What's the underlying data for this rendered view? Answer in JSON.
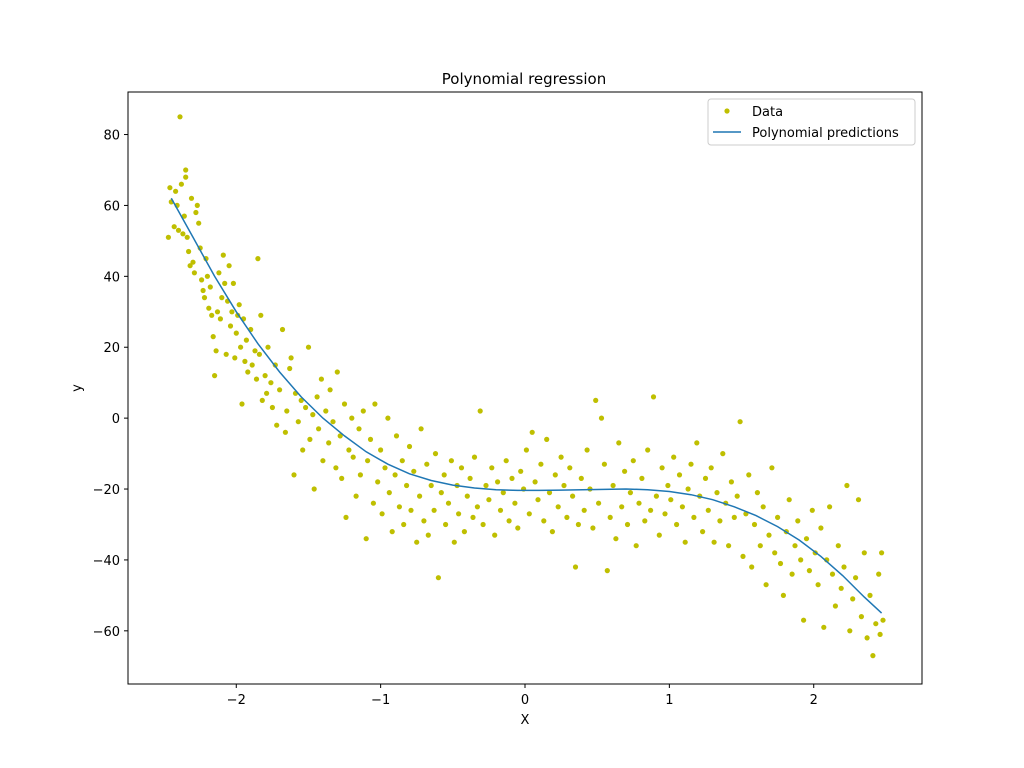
{
  "chart_data": {
    "type": "scatter",
    "title": "Polynomial regression",
    "xlabel": "X",
    "ylabel": "y",
    "xlim": [
      -2.75,
      2.75
    ],
    "ylim": [
      -75,
      92
    ],
    "x_ticks": [
      -2,
      -1,
      0,
      1,
      2
    ],
    "x_tick_labels": [
      "−2",
      "−1",
      "0",
      "1",
      "2"
    ],
    "y_ticks": [
      -60,
      -40,
      -20,
      0,
      20,
      40,
      60,
      80
    ],
    "y_tick_labels": [
      "−60",
      "−40",
      "−20",
      "0",
      "20",
      "40",
      "60",
      "80"
    ],
    "grid": false,
    "legend": {
      "placement": "top-right",
      "entries": [
        "Data",
        "Polynomial predictions"
      ]
    },
    "colors": {
      "data": "#bfbf00",
      "prediction": "#1f77b4"
    },
    "series": [
      {
        "name": "Data",
        "kind": "scatter",
        "points": [
          [
            -2.47,
            51
          ],
          [
            -2.46,
            65
          ],
          [
            -2.45,
            61
          ],
          [
            -2.43,
            54
          ],
          [
            -2.42,
            64
          ],
          [
            -2.41,
            60
          ],
          [
            -2.4,
            53
          ],
          [
            -2.39,
            85
          ],
          [
            -2.38,
            66
          ],
          [
            -2.37,
            52
          ],
          [
            -2.36,
            57
          ],
          [
            -2.35,
            68
          ],
          [
            -2.35,
            70
          ],
          [
            -2.34,
            51
          ],
          [
            -2.33,
            47
          ],
          [
            -2.32,
            43
          ],
          [
            -2.31,
            62
          ],
          [
            -2.3,
            44
          ],
          [
            -2.29,
            41
          ],
          [
            -2.28,
            58
          ],
          [
            -2.27,
            60
          ],
          [
            -2.26,
            55
          ],
          [
            -2.25,
            48
          ],
          [
            -2.24,
            39
          ],
          [
            -2.23,
            36
          ],
          [
            -2.22,
            34
          ],
          [
            -2.21,
            45
          ],
          [
            -2.2,
            40
          ],
          [
            -2.19,
            31
          ],
          [
            -2.18,
            37
          ],
          [
            -2.17,
            29
          ],
          [
            -2.16,
            23
          ],
          [
            -2.15,
            12
          ],
          [
            -2.14,
            19
          ],
          [
            -2.13,
            30
          ],
          [
            -2.12,
            41
          ],
          [
            -2.11,
            28
          ],
          [
            -2.1,
            34
          ],
          [
            -2.09,
            46
          ],
          [
            -2.08,
            38
          ],
          [
            -2.07,
            18
          ],
          [
            -2.06,
            33
          ],
          [
            -2.05,
            43
          ],
          [
            -2.04,
            26
          ],
          [
            -2.03,
            30
          ],
          [
            -2.02,
            38
          ],
          [
            -2.01,
            17
          ],
          [
            -2.0,
            24
          ],
          [
            -1.99,
            29
          ],
          [
            -1.98,
            32
          ],
          [
            -1.97,
            20
          ],
          [
            -1.96,
            4
          ],
          [
            -1.95,
            28
          ],
          [
            -1.94,
            16
          ],
          [
            -1.93,
            22
          ],
          [
            -1.92,
            13
          ],
          [
            -1.9,
            25
          ],
          [
            -1.89,
            15
          ],
          [
            -1.87,
            19
          ],
          [
            -1.86,
            11
          ],
          [
            -1.85,
            45
          ],
          [
            -1.84,
            18
          ],
          [
            -1.83,
            29
          ],
          [
            -1.82,
            5
          ],
          [
            -1.8,
            12
          ],
          [
            -1.79,
            7
          ],
          [
            -1.78,
            20
          ],
          [
            -1.76,
            10
          ],
          [
            -1.75,
            3
          ],
          [
            -1.73,
            15
          ],
          [
            -1.72,
            -2
          ],
          [
            -1.7,
            8
          ],
          [
            -1.68,
            25
          ],
          [
            -1.66,
            -4
          ],
          [
            -1.65,
            2
          ],
          [
            -1.63,
            14
          ],
          [
            -1.62,
            17
          ],
          [
            -1.6,
            -16
          ],
          [
            -1.59,
            7
          ],
          [
            -1.57,
            -1
          ],
          [
            -1.55,
            5
          ],
          [
            -1.54,
            -9
          ],
          [
            -1.52,
            3
          ],
          [
            -1.5,
            20
          ],
          [
            -1.49,
            -6
          ],
          [
            -1.47,
            1
          ],
          [
            -1.46,
            -20
          ],
          [
            -1.44,
            6
          ],
          [
            -1.43,
            -3
          ],
          [
            -1.41,
            11
          ],
          [
            -1.4,
            -12
          ],
          [
            -1.38,
            2
          ],
          [
            -1.36,
            -7
          ],
          [
            -1.35,
            8
          ],
          [
            -1.33,
            -1
          ],
          [
            -1.31,
            -14
          ],
          [
            -1.3,
            13
          ],
          [
            -1.28,
            -5
          ],
          [
            -1.27,
            -17
          ],
          [
            -1.25,
            4
          ],
          [
            -1.24,
            -28
          ],
          [
            -1.22,
            -9
          ],
          [
            -1.2,
            0
          ],
          [
            -1.19,
            -11
          ],
          [
            -1.17,
            -22
          ],
          [
            -1.15,
            -3
          ],
          [
            -1.14,
            -16
          ],
          [
            -1.12,
            2
          ],
          [
            -1.1,
            -34
          ],
          [
            -1.09,
            -12
          ],
          [
            -1.07,
            -6
          ],
          [
            -1.05,
            -24
          ],
          [
            -1.04,
            4
          ],
          [
            -1.02,
            -18
          ],
          [
            -1.0,
            -9
          ],
          [
            -0.99,
            -27
          ],
          [
            -0.97,
            -14
          ],
          [
            -0.95,
            0
          ],
          [
            -0.94,
            -21
          ],
          [
            -0.92,
            -32
          ],
          [
            -0.9,
            -16
          ],
          [
            -0.89,
            -5
          ],
          [
            -0.87,
            -25
          ],
          [
            -0.85,
            -12
          ],
          [
            -0.84,
            -30
          ],
          [
            -0.82,
            -19
          ],
          [
            -0.8,
            -8
          ],
          [
            -0.79,
            -26
          ],
          [
            -0.77,
            -15
          ],
          [
            -0.75,
            -35
          ],
          [
            -0.73,
            -22
          ],
          [
            -0.72,
            -3
          ],
          [
            -0.7,
            -29
          ],
          [
            -0.68,
            -13
          ],
          [
            -0.67,
            -33
          ],
          [
            -0.65,
            -19
          ],
          [
            -0.63,
            -26
          ],
          [
            -0.62,
            -10
          ],
          [
            -0.6,
            -45
          ],
          [
            -0.58,
            -21
          ],
          [
            -0.56,
            -16
          ],
          [
            -0.55,
            -30
          ],
          [
            -0.53,
            -24
          ],
          [
            -0.51,
            -12
          ],
          [
            -0.49,
            -35
          ],
          [
            -0.47,
            -19
          ],
          [
            -0.46,
            -27
          ],
          [
            -0.44,
            -14
          ],
          [
            -0.42,
            -32
          ],
          [
            -0.4,
            -22
          ],
          [
            -0.38,
            -17
          ],
          [
            -0.36,
            -28
          ],
          [
            -0.35,
            -11
          ],
          [
            -0.33,
            -25
          ],
          [
            -0.31,
            2
          ],
          [
            -0.29,
            -30
          ],
          [
            -0.27,
            -19
          ],
          [
            -0.25,
            -23
          ],
          [
            -0.23,
            -14
          ],
          [
            -0.21,
            -33
          ],
          [
            -0.19,
            -18
          ],
          [
            -0.17,
            -26
          ],
          [
            -0.15,
            -21
          ],
          [
            -0.13,
            -12
          ],
          [
            -0.11,
            -29
          ],
          [
            -0.09,
            -17
          ],
          [
            -0.07,
            -24
          ],
          [
            -0.05,
            -31
          ],
          [
            -0.03,
            -15
          ],
          [
            -0.01,
            -20
          ],
          [
            0.01,
            -9
          ],
          [
            0.03,
            -27
          ],
          [
            0.05,
            -4
          ],
          [
            0.07,
            -18
          ],
          [
            0.09,
            -23
          ],
          [
            0.11,
            -13
          ],
          [
            0.13,
            -29
          ],
          [
            0.15,
            -6
          ],
          [
            0.17,
            -21
          ],
          [
            0.19,
            -32
          ],
          [
            0.21,
            -16
          ],
          [
            0.23,
            -25
          ],
          [
            0.25,
            -11
          ],
          [
            0.27,
            -19
          ],
          [
            0.29,
            -28
          ],
          [
            0.31,
            -14
          ],
          [
            0.33,
            -22
          ],
          [
            0.35,
            -42
          ],
          [
            0.37,
            -30
          ],
          [
            0.39,
            -17
          ],
          [
            0.41,
            -26
          ],
          [
            0.43,
            -9
          ],
          [
            0.45,
            -20
          ],
          [
            0.47,
            -31
          ],
          [
            0.49,
            5
          ],
          [
            0.51,
            -24
          ],
          [
            0.53,
            0
          ],
          [
            0.55,
            -13
          ],
          [
            0.57,
            -43
          ],
          [
            0.59,
            -28
          ],
          [
            0.61,
            -19
          ],
          [
            0.63,
            -34
          ],
          [
            0.65,
            -7
          ],
          [
            0.67,
            -25
          ],
          [
            0.69,
            -15
          ],
          [
            0.71,
            -30
          ],
          [
            0.73,
            -21
          ],
          [
            0.75,
            -12
          ],
          [
            0.77,
            -36
          ],
          [
            0.79,
            -24
          ],
          [
            0.81,
            -17
          ],
          [
            0.83,
            -29
          ],
          [
            0.85,
            -9
          ],
          [
            0.87,
            -26
          ],
          [
            0.89,
            6
          ],
          [
            0.91,
            -22
          ],
          [
            0.93,
            -33
          ],
          [
            0.95,
            -14
          ],
          [
            0.97,
            -27
          ],
          [
            0.99,
            -19
          ],
          [
            1.01,
            -23
          ],
          [
            1.03,
            -11
          ],
          [
            1.05,
            -30
          ],
          [
            1.07,
            -16
          ],
          [
            1.09,
            -25
          ],
          [
            1.11,
            -35
          ],
          [
            1.13,
            -20
          ],
          [
            1.15,
            -13
          ],
          [
            1.17,
            -28
          ],
          [
            1.19,
            -7
          ],
          [
            1.21,
            -22
          ],
          [
            1.23,
            -32
          ],
          [
            1.25,
            -17
          ],
          [
            1.27,
            -26
          ],
          [
            1.29,
            -14
          ],
          [
            1.31,
            -35
          ],
          [
            1.33,
            -21
          ],
          [
            1.35,
            -29
          ],
          [
            1.37,
            -10
          ],
          [
            1.39,
            -24
          ],
          [
            1.41,
            -36
          ],
          [
            1.43,
            -18
          ],
          [
            1.45,
            -28
          ],
          [
            1.47,
            -22
          ],
          [
            1.49,
            -1
          ],
          [
            1.51,
            -39
          ],
          [
            1.53,
            -27
          ],
          [
            1.55,
            -16
          ],
          [
            1.57,
            -42
          ],
          [
            1.59,
            -30
          ],
          [
            1.61,
            -21
          ],
          [
            1.63,
            -36
          ],
          [
            1.65,
            -25
          ],
          [
            1.67,
            -47
          ],
          [
            1.69,
            -33
          ],
          [
            1.71,
            -14
          ],
          [
            1.73,
            -38
          ],
          [
            1.75,
            -28
          ],
          [
            1.77,
            -41
          ],
          [
            1.79,
            -50
          ],
          [
            1.81,
            -32
          ],
          [
            1.83,
            -23
          ],
          [
            1.85,
            -44
          ],
          [
            1.87,
            -36
          ],
          [
            1.89,
            -29
          ],
          [
            1.91,
            -40
          ],
          [
            1.93,
            -57
          ],
          [
            1.95,
            -34
          ],
          [
            1.97,
            -43
          ],
          [
            1.99,
            -26
          ],
          [
            2.01,
            -38
          ],
          [
            2.03,
            -47
          ],
          [
            2.05,
            -31
          ],
          [
            2.07,
            -59
          ],
          [
            2.09,
            -40
          ],
          [
            2.11,
            -25
          ],
          [
            2.13,
            -44
          ],
          [
            2.15,
            -53
          ],
          [
            2.17,
            -36
          ],
          [
            2.19,
            -48
          ],
          [
            2.21,
            -42
          ],
          [
            2.23,
            -19
          ],
          [
            2.25,
            -60
          ],
          [
            2.27,
            -51
          ],
          [
            2.29,
            -45
          ],
          [
            2.31,
            -23
          ],
          [
            2.33,
            -56
          ],
          [
            2.35,
            -38
          ],
          [
            2.37,
            -62
          ],
          [
            2.39,
            -50
          ],
          [
            2.41,
            -67
          ],
          [
            2.43,
            -58
          ],
          [
            2.45,
            -44
          ],
          [
            2.46,
            -61
          ],
          [
            2.47,
            -38
          ],
          [
            2.48,
            -57
          ]
        ]
      },
      {
        "name": "Polynomial predictions",
        "kind": "line",
        "x": [
          -2.45,
          -2.3,
          -2.15,
          -2.0,
          -1.85,
          -1.7,
          -1.55,
          -1.4,
          -1.25,
          -1.1,
          -0.95,
          -0.8,
          -0.65,
          -0.5,
          -0.35,
          -0.2,
          -0.05,
          0.1,
          0.25,
          0.4,
          0.55,
          0.7,
          0.85,
          1.0,
          1.15,
          1.3,
          1.45,
          1.6,
          1.75,
          1.9,
          2.05,
          2.2,
          2.35,
          2.47
        ],
        "y": [
          62,
          51,
          40,
          30,
          21,
          13,
          6,
          0,
          -5,
          -9.5,
          -13,
          -15.7,
          -17.6,
          -18.9,
          -19.7,
          -20.2,
          -20.4,
          -20.4,
          -20.3,
          -20.2,
          -20.1,
          -20.0,
          -20.2,
          -20.7,
          -21.6,
          -23.0,
          -25.0,
          -27.5,
          -30.6,
          -34.4,
          -39.0,
          -44.4,
          -50.5,
          -55
        ]
      }
    ]
  }
}
